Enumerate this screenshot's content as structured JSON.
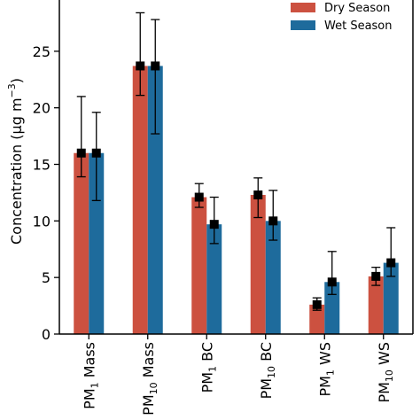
{
  "chart_data": {
    "type": "bar",
    "title": "",
    "ylabel_main": "Concentration (",
    "ylabel_unit_mu": "μ",
    "ylabel_unit_g": "g m",
    "ylabel_unit_sup": "−3",
    "ylabel_close": ")",
    "ylim": [
      0,
      30
    ],
    "yticks": [
      0,
      5,
      10,
      15,
      20,
      25
    ],
    "ytick_labels": [
      "0",
      "5",
      "10",
      "15",
      "20",
      "25"
    ],
    "categories": [
      {
        "main": "PM",
        "sub": "1",
        "tail": " Mass"
      },
      {
        "main": "PM",
        "sub": "10",
        "tail": " Mass"
      },
      {
        "main": "PM",
        "sub": "1",
        "tail": " BC"
      },
      {
        "main": "PM",
        "sub": "10",
        "tail": " BC"
      },
      {
        "main": "PM",
        "sub": "1",
        "tail": " WS"
      },
      {
        "main": "PM",
        "sub": "10",
        "tail": " WS"
      }
    ],
    "series": [
      {
        "name": "Dry Season",
        "color": "#cc5140",
        "values": [
          16.0,
          23.7,
          12.1,
          12.3,
          2.6,
          5.1
        ],
        "err_low": [
          13.9,
          21.1,
          11.2,
          10.3,
          2.1,
          4.3
        ],
        "err_high": [
          21.0,
          28.4,
          13.3,
          13.8,
          3.2,
          5.9
        ]
      },
      {
        "name": "Wet Season",
        "color": "#1e6b9c",
        "values": [
          16.0,
          23.7,
          9.7,
          10.0,
          4.6,
          6.3
        ],
        "err_low": [
          11.8,
          17.7,
          8.0,
          8.3,
          3.5,
          5.1
        ],
        "err_high": [
          19.6,
          27.8,
          12.1,
          12.7,
          7.3,
          9.4
        ]
      }
    ],
    "legend_position": "top-right",
    "grid": false
  }
}
